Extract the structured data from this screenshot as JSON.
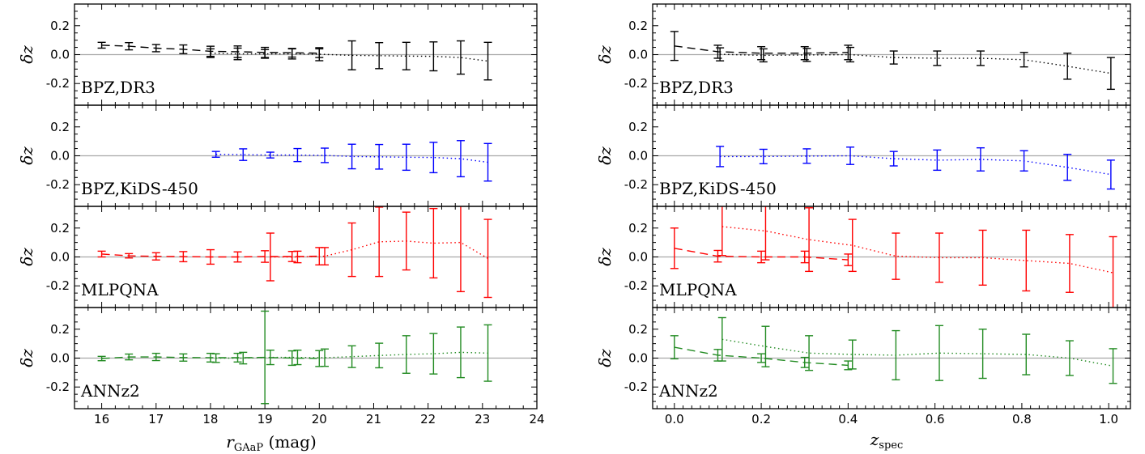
{
  "figure": {
    "ylabel": "δz",
    "labels": [
      "BPZ,DR3",
      "BPZ,KiDS-450",
      "MLPQNA",
      "ANNz2"
    ],
    "colors": [
      "#000000",
      "#0000ff",
      "#ff0000",
      "#228b22"
    ],
    "yticks": [
      "0.2",
      "0.0",
      "-0.2"
    ],
    "ylim": [
      -0.35,
      0.35
    ],
    "left": {
      "xlabel_main": "r",
      "xlabel_sub": "GAaP",
      "xlabel_unit": " (mag)",
      "xlim": [
        15.5,
        24
      ],
      "xticks": [
        "16",
        "17",
        "18",
        "19",
        "20",
        "21",
        "22",
        "23",
        "24"
      ]
    },
    "right": {
      "xlabel_main": "z",
      "xlabel_sub": "spec",
      "xlabel_unit": "",
      "xlim": [
        -0.05,
        1.05
      ],
      "xticks": [
        "0.0",
        "0.2",
        "0.4",
        "0.6",
        "0.8",
        "1.0"
      ]
    }
  },
  "chart_data": [
    {
      "type": "line",
      "subplot": "left",
      "xlabel": "rGAaP (mag)",
      "ylabel": "δz",
      "panels": [
        {
          "label": "BPZ,DR3",
          "color": "#000000",
          "dashed": {
            "x": [
              16.0,
              16.5,
              17.0,
              17.5,
              18.0,
              18.5,
              19.0,
              19.5,
              20.0
            ],
            "y": [
              0.065,
              0.058,
              0.045,
              0.037,
              0.023,
              0.02,
              0.015,
              0.013,
              0.01
            ],
            "err": [
              0.02,
              0.025,
              0.025,
              0.03,
              0.035,
              0.04,
              0.035,
              0.03,
              0.03
            ]
          },
          "dotted": {
            "x": [
              18.0,
              18.5,
              19.0,
              19.5,
              20.0,
              20.6,
              21.1,
              21.6,
              22.1,
              22.6,
              23.1
            ],
            "y": [
              0.01,
              0.005,
              0.005,
              0.005,
              0.003,
              -0.005,
              -0.007,
              -0.01,
              -0.012,
              -0.02,
              -0.045
            ],
            "err": [
              0.03,
              0.04,
              0.03,
              0.035,
              0.045,
              0.1,
              0.09,
              0.095,
              0.1,
              0.115,
              0.13
            ]
          }
        },
        {
          "label": "BPZ,KiDS-450",
          "color": "#0000ff",
          "dotted": {
            "x": [
              18.1,
              18.6,
              19.1,
              19.6,
              20.1,
              20.6,
              21.1,
              21.6,
              22.1,
              22.6,
              23.1
            ],
            "y": [
              0.01,
              0.008,
              0.005,
              0.005,
              0.003,
              -0.005,
              -0.007,
              -0.01,
              -0.012,
              -0.02,
              -0.045
            ],
            "err": [
              0.02,
              0.04,
              0.02,
              0.045,
              0.05,
              0.085,
              0.085,
              0.09,
              0.105,
              0.125,
              0.13
            ]
          }
        },
        {
          "label": "MLPQNA",
          "color": "#ff0000",
          "dashed": {
            "x": [
              16.0,
              16.5,
              17.0,
              17.5,
              18.0,
              18.5,
              19.0,
              19.5,
              20.0
            ],
            "y": [
              0.02,
              0.008,
              0.004,
              0.002,
              0.0,
              0.0,
              0.003,
              0.003,
              0.005
            ],
            "err": [
              0.02,
              0.015,
              0.025,
              0.035,
              0.05,
              0.035,
              0.04,
              0.035,
              0.06
            ]
          },
          "dotted": {
            "x": [
              19.1,
              19.6,
              20.1,
              20.6,
              21.1,
              21.6,
              22.1,
              22.6,
              23.1
            ],
            "y": [
              0.0,
              0.0,
              0.005,
              0.05,
              0.105,
              0.11,
              0.095,
              0.1,
              -0.01
            ],
            "err": [
              0.165,
              0.04,
              0.06,
              0.185,
              0.24,
              0.2,
              0.24,
              0.34,
              0.27
            ]
          }
        },
        {
          "label": "ANNz2",
          "color": "#228b22",
          "dashed": {
            "x": [
              16.0,
              16.5,
              17.0,
              17.5,
              18.0,
              18.5,
              19.0,
              19.5,
              20.0
            ],
            "y": [
              -0.003,
              0.008,
              0.008,
              0.004,
              0.003,
              0.003,
              0.005,
              0.0,
              -0.003
            ],
            "err": [
              0.015,
              0.02,
              0.025,
              0.025,
              0.03,
              0.03,
              0.32,
              0.05,
              0.055
            ]
          },
          "dotted": {
            "x": [
              18.1,
              18.6,
              19.1,
              19.6,
              20.1,
              20.6,
              21.1,
              21.6,
              22.1,
              22.6,
              23.1
            ],
            "y": [
              0.0,
              0.0,
              0.005,
              0.005,
              0.003,
              0.01,
              0.018,
              0.025,
              0.03,
              0.04,
              0.035
            ],
            "err": [
              0.03,
              0.04,
              0.05,
              0.05,
              0.06,
              0.075,
              0.085,
              0.13,
              0.14,
              0.175,
              0.195
            ]
          }
        }
      ]
    },
    {
      "type": "line",
      "subplot": "right",
      "xlabel": "zspec",
      "ylabel": "δz",
      "panels": [
        {
          "label": "BPZ,DR3",
          "color": "#000000",
          "dashed": {
            "x": [
              0.0,
              0.1,
              0.2,
              0.3,
              0.4
            ],
            "y": [
              0.06,
              0.02,
              0.01,
              0.01,
              0.015
            ],
            "err": [
              0.1,
              0.045,
              0.045,
              0.045,
              0.05
            ]
          },
          "dotted": {
            "x": [
              0.105,
              0.205,
              0.305,
              0.405,
              0.505,
              0.605,
              0.705,
              0.805,
              0.905,
              1.005
            ],
            "y": [
              0.002,
              -0.005,
              -0.002,
              0.0,
              -0.02,
              -0.025,
              -0.025,
              -0.035,
              -0.08,
              -0.13
            ],
            "err": [
              0.045,
              0.045,
              0.045,
              0.05,
              0.045,
              0.05,
              0.05,
              0.05,
              0.09,
              0.11
            ]
          }
        },
        {
          "label": "BPZ,KiDS-450",
          "color": "#0000ff",
          "dotted": {
            "x": [
              0.105,
              0.205,
              0.305,
              0.405,
              0.505,
              0.605,
              0.705,
              0.805,
              0.905,
              1.005
            ],
            "y": [
              -0.005,
              -0.005,
              -0.002,
              0.0,
              -0.02,
              -0.03,
              -0.025,
              -0.035,
              -0.08,
              -0.13
            ],
            "err": [
              0.07,
              0.05,
              0.05,
              0.06,
              0.05,
              0.07,
              0.08,
              0.07,
              0.09,
              0.1
            ]
          }
        },
        {
          "label": "MLPQNA",
          "color": "#ff0000",
          "dashed": {
            "x": [
              0.0,
              0.1,
              0.2,
              0.3,
              0.4
            ],
            "y": [
              0.06,
              0.005,
              0.0,
              0.0,
              -0.02
            ],
            "err": [
              0.14,
              0.04,
              0.04,
              0.04,
              0.04
            ]
          },
          "dotted": {
            "x": [
              0.11,
              0.21,
              0.31,
              0.41,
              0.51,
              0.61,
              0.71,
              0.81,
              0.91,
              1.01
            ],
            "y": [
              0.21,
              0.18,
              0.12,
              0.08,
              0.005,
              -0.005,
              -0.005,
              -0.025,
              -0.045,
              -0.11
            ],
            "err": [
              0.2,
              0.2,
              0.22,
              0.18,
              0.16,
              0.17,
              0.19,
              0.21,
              0.2,
              0.25
            ]
          }
        },
        {
          "label": "ANNz2",
          "color": "#228b22",
          "dashed": {
            "x": [
              0.0,
              0.1,
              0.2,
              0.3,
              0.4
            ],
            "y": [
              0.075,
              0.02,
              0.0,
              -0.03,
              -0.05
            ],
            "err": [
              0.08,
              0.04,
              0.03,
              0.035,
              0.03
            ]
          },
          "dotted": {
            "x": [
              0.11,
              0.21,
              0.31,
              0.41,
              0.51,
              0.61,
              0.71,
              0.81,
              0.91,
              1.01
            ],
            "y": [
              0.13,
              0.08,
              0.035,
              0.025,
              0.02,
              0.035,
              0.03,
              0.025,
              0.0,
              -0.055
            ],
            "err": [
              0.15,
              0.14,
              0.12,
              0.1,
              0.17,
              0.19,
              0.17,
              0.14,
              0.12,
              0.12
            ]
          }
        }
      ]
    }
  ]
}
